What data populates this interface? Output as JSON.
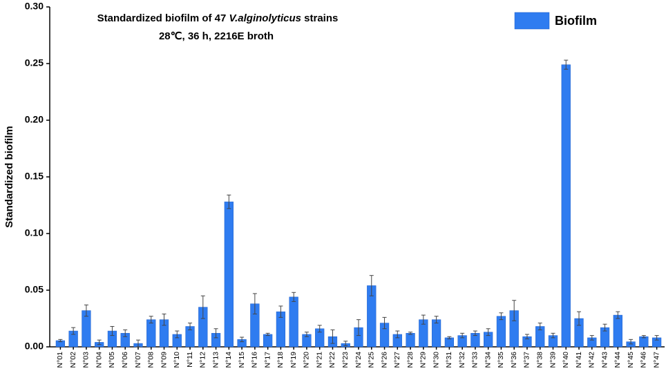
{
  "chart_data": {
    "type": "bar",
    "title_parts": [
      "Standardized biofilm of 47 ",
      "V.alginolyticus",
      " strains"
    ],
    "subtitle": "28℃, 36 h, 2216E broth",
    "y_label": "Standardized biofilm",
    "categories": [
      "N°01",
      "N°02",
      "N°03",
      "N°04",
      "N°05",
      "N°06",
      "N°07",
      "N°08",
      "N°09",
      "N°10",
      "N°11",
      "N°12",
      "N°13",
      "N°14",
      "N°15",
      "N°16",
      "N°17",
      "N°18",
      "N°19",
      "N°20",
      "N°21",
      "N°22",
      "N°23",
      "N°24",
      "N°25",
      "N°26",
      "N°27",
      "N°28",
      "N°29",
      "N°30",
      "N°31",
      "N°32",
      "N°33",
      "N°34",
      "N°35",
      "N°36",
      "N°37",
      "N°38",
      "N°39",
      "N°40",
      "N°41",
      "N°42",
      "N°43",
      "N°44",
      "N°45",
      "N°46",
      "N°47"
    ],
    "series": [
      {
        "name": "Biofilm",
        "color": "#2f7cf0",
        "values": [
          0.0055,
          0.014,
          0.032,
          0.004,
          0.014,
          0.012,
          0.003,
          0.024,
          0.024,
          0.011,
          0.018,
          0.035,
          0.012,
          0.128,
          0.0065,
          0.038,
          0.011,
          0.031,
          0.044,
          0.011,
          0.016,
          0.009,
          0.003,
          0.017,
          0.054,
          0.021,
          0.011,
          0.012,
          0.024,
          0.024,
          0.008,
          0.01,
          0.012,
          0.013,
          0.027,
          0.032,
          0.009,
          0.018,
          0.01,
          0.249,
          0.025,
          0.008,
          0.017,
          0.028,
          0.0045,
          0.009,
          0.008
        ],
        "errors": [
          0.001,
          0.003,
          0.005,
          0.002,
          0.004,
          0.003,
          0.003,
          0.003,
          0.005,
          0.003,
          0.003,
          0.01,
          0.004,
          0.006,
          0.002,
          0.009,
          0.001,
          0.005,
          0.004,
          0.002,
          0.003,
          0.006,
          0.002,
          0.007,
          0.009,
          0.005,
          0.003,
          0.001,
          0.004,
          0.003,
          0.001,
          0.002,
          0.002,
          0.003,
          0.003,
          0.009,
          0.002,
          0.003,
          0.002,
          0.004,
          0.006,
          0.002,
          0.003,
          0.003,
          0.002,
          0.001,
          0.002
        ]
      }
    ],
    "ylim": [
      0,
      0.3
    ],
    "yticks": [
      {
        "value": 0,
        "label": "0.00"
      },
      0.05,
      {
        "value": 0.1,
        "label": "0.10"
      },
      0.15,
      {
        "value": 0.2,
        "label": "0.20"
      },
      0.25,
      {
        "value": 0.3,
        "label": "0.30"
      }
    ],
    "error_color": "#444444",
    "legend": "top-right"
  }
}
